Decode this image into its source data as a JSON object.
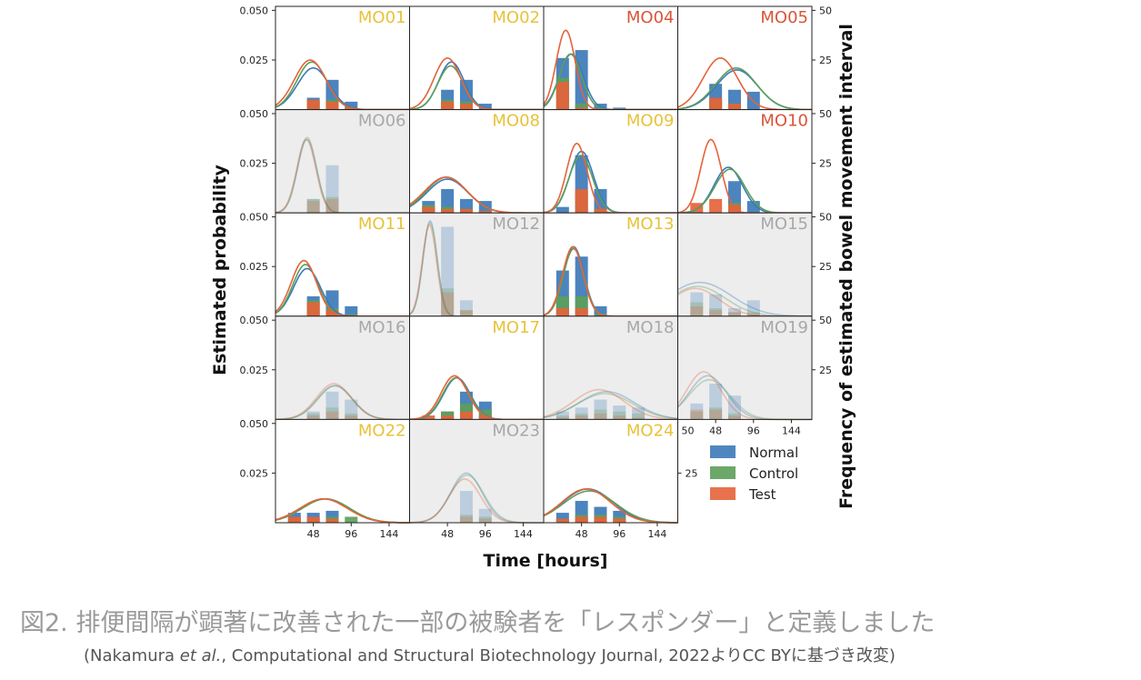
{
  "chart_data": {
    "type": "bar",
    "title": "",
    "xlabel": "Time [hours]",
    "ylabel": "Estimated probability",
    "y2label": "Frequency of estimated bowel movement interval",
    "xlim": [
      0,
      170
    ],
    "ylim": [
      0,
      0.052
    ],
    "y2lim": [
      0,
      52
    ],
    "xticks": [
      "48",
      "96",
      "144"
    ],
    "yticks": [
      "0.050",
      "0.025"
    ],
    "y2ticks": [
      "50",
      "25"
    ],
    "bar_centers": [
      24,
      48,
      72,
      96,
      120
    ],
    "extra_xtick": "50",
    "colors": {
      "Normal": "#3d79b8",
      "Control": "#5c9f5a",
      "Test": "#e5633a",
      "gold": "#e8c23a",
      "red": "#d9553a",
      "gray": "#a8a8a8"
    },
    "legend": {
      "position": "bottom-right",
      "entries": [
        "Normal",
        "Control",
        "Test"
      ]
    },
    "panels": [
      {
        "id": "MO01",
        "status": "gold",
        "normal": [
          0,
          6,
          15,
          4,
          0
        ],
        "control": [
          0,
          4,
          5,
          1,
          0
        ],
        "test": [
          0,
          5,
          4,
          1,
          0
        ],
        "curves": [
          {
            "s": "Normal",
            "mu": 48,
            "sd": 20,
            "a": 0.021
          },
          {
            "s": "Control",
            "mu": 46,
            "sd": 19,
            "a": 0.024
          },
          {
            "s": "Test",
            "mu": 44,
            "sd": 20,
            "a": 0.025
          }
        ]
      },
      {
        "id": "MO02",
        "status": "gold",
        "normal": [
          0,
          10,
          15,
          3,
          0
        ],
        "control": [
          0,
          5,
          4,
          0,
          0
        ],
        "test": [
          0,
          4,
          3,
          0,
          0
        ],
        "curves": [
          {
            "s": "Normal",
            "mu": 53,
            "sd": 16,
            "a": 0.024
          },
          {
            "s": "Control",
            "mu": 52,
            "sd": 16,
            "a": 0.022
          },
          {
            "s": "Test",
            "mu": 48,
            "sd": 17,
            "a": 0.026
          }
        ]
      },
      {
        "id": "MO04",
        "status": "red",
        "normal": [
          26,
          30,
          3,
          1,
          0
        ],
        "control": [
          16,
          3,
          0,
          0,
          0
        ],
        "test": [
          14,
          1,
          0,
          0,
          0
        ],
        "curves": [
          {
            "s": "Normal",
            "mu": 35,
            "sd": 15,
            "a": 0.028
          },
          {
            "s": "Control",
            "mu": 34,
            "sd": 14,
            "a": 0.028
          },
          {
            "s": "Test",
            "mu": 28,
            "sd": 12,
            "a": 0.04
          }
        ]
      },
      {
        "id": "MO05",
        "status": "red",
        "normal": [
          0,
          13,
          10,
          9,
          0
        ],
        "control": [
          0,
          5,
          3,
          0,
          0
        ],
        "test": [
          0,
          6,
          3,
          0,
          0
        ],
        "curves": [
          {
            "s": "Normal",
            "mu": 75,
            "sd": 26,
            "a": 0.02
          },
          {
            "s": "Control",
            "mu": 74,
            "sd": 26,
            "a": 0.021
          },
          {
            "s": "Test",
            "mu": 54,
            "sd": 22,
            "a": 0.026
          }
        ]
      },
      {
        "id": "MO06",
        "status": "gray",
        "normal": [
          0,
          7,
          24,
          0,
          0
        ],
        "control": [
          0,
          7,
          8,
          0,
          0
        ],
        "test": [
          0,
          6,
          7,
          0,
          0
        ],
        "curves": [
          {
            "s": "Normal",
            "mu": 40,
            "sd": 12,
            "a": 0.037
          },
          {
            "s": "Control",
            "mu": 40,
            "sd": 12,
            "a": 0.038
          },
          {
            "s": "Test",
            "mu": 39,
            "sd": 12,
            "a": 0.037
          }
        ]
      },
      {
        "id": "MO08",
        "status": "gold",
        "normal": [
          6,
          12,
          7,
          6,
          0
        ],
        "control": [
          4,
          3,
          2,
          1,
          0
        ],
        "test": [
          3,
          2,
          2,
          1,
          0
        ],
        "curves": [
          {
            "s": "Normal",
            "mu": 48,
            "sd": 26,
            "a": 0.017
          },
          {
            "s": "Control",
            "mu": 47,
            "sd": 26,
            "a": 0.018
          },
          {
            "s": "Test",
            "mu": 46,
            "sd": 27,
            "a": 0.018
          }
        ]
      },
      {
        "id": "MO09",
        "status": "gold",
        "normal": [
          3,
          29,
          12,
          0,
          0
        ],
        "control": [
          0,
          11,
          2,
          0,
          0
        ],
        "test": [
          0,
          12,
          2,
          0,
          0
        ],
        "curves": [
          {
            "s": "Normal",
            "mu": 48,
            "sd": 15,
            "a": 0.031
          },
          {
            "s": "Control",
            "mu": 47,
            "sd": 15,
            "a": 0.029
          },
          {
            "s": "Test",
            "mu": 42,
            "sd": 13,
            "a": 0.035
          }
        ]
      },
      {
        "id": "MO10",
        "status": "red",
        "normal": [
          0,
          0,
          16,
          6,
          0
        ],
        "control": [
          0,
          0,
          5,
          0,
          0
        ],
        "test": [
          5,
          7,
          4,
          0,
          0
        ],
        "curves": [
          {
            "s": "Normal",
            "mu": 64,
            "sd": 18,
            "a": 0.023
          },
          {
            "s": "Control",
            "mu": 66,
            "sd": 19,
            "a": 0.022
          },
          {
            "s": "Test",
            "mu": 42,
            "sd": 13,
            "a": 0.037
          }
        ]
      },
      {
        "id": "MO11",
        "status": "gold",
        "normal": [
          0,
          10,
          13,
          5,
          0
        ],
        "control": [
          0,
          8,
          4,
          1,
          0
        ],
        "test": [
          0,
          7,
          3,
          0,
          0
        ],
        "curves": [
          {
            "s": "Normal",
            "mu": 40,
            "sd": 17,
            "a": 0.024
          },
          {
            "s": "Control",
            "mu": 38,
            "sd": 16,
            "a": 0.026
          },
          {
            "s": "Test",
            "mu": 36,
            "sd": 16,
            "a": 0.028
          }
        ]
      },
      {
        "id": "MO12",
        "status": "gray",
        "normal": [
          0,
          45,
          8,
          0,
          0
        ],
        "control": [
          0,
          14,
          3,
          0,
          0
        ],
        "test": [
          0,
          12,
          3,
          0,
          0
        ],
        "curves": [
          {
            "s": "Normal",
            "mu": 26,
            "sd": 9,
            "a": 0.048
          },
          {
            "s": "Control",
            "mu": 26,
            "sd": 9,
            "a": 0.047
          },
          {
            "s": "Test",
            "mu": 25,
            "sd": 9,
            "a": 0.046
          }
        ]
      },
      {
        "id": "MO13",
        "status": "gold",
        "normal": [
          23,
          30,
          5,
          0,
          0
        ],
        "control": [
          10,
          10,
          1,
          0,
          0
        ],
        "test": [
          4,
          4,
          0,
          0,
          0
        ],
        "curves": [
          {
            "s": "Normal",
            "mu": 38,
            "sd": 13,
            "a": 0.035
          },
          {
            "s": "Control",
            "mu": 38,
            "sd": 13,
            "a": 0.034
          },
          {
            "s": "Test",
            "mu": 37,
            "sd": 13,
            "a": 0.035
          }
        ]
      },
      {
        "id": "MO15",
        "status": "gray",
        "normal": [
          12,
          11,
          4,
          8,
          0
        ],
        "control": [
          7,
          4,
          2,
          2,
          0
        ],
        "test": [
          5,
          3,
          2,
          1,
          0
        ],
        "curves": [
          {
            "s": "Normal",
            "mu": 28,
            "sd": 40,
            "a": 0.017
          },
          {
            "s": "Control",
            "mu": 25,
            "sd": 35,
            "a": 0.015
          },
          {
            "s": "Test",
            "mu": 22,
            "sd": 30,
            "a": 0.014
          }
        ]
      },
      {
        "id": "MO16",
        "status": "gray",
        "normal": [
          0,
          4,
          14,
          10,
          0
        ],
        "control": [
          0,
          3,
          6,
          3,
          0
        ],
        "test": [
          0,
          2,
          4,
          2,
          0
        ],
        "curves": [
          {
            "s": "Normal",
            "mu": 75,
            "sd": 22,
            "a": 0.017
          },
          {
            "s": "Control",
            "mu": 76,
            "sd": 22,
            "a": 0.017
          },
          {
            "s": "Test",
            "mu": 74,
            "sd": 22,
            "a": 0.018
          }
        ]
      },
      {
        "id": "MO17",
        "status": "gold",
        "normal": [
          0,
          4,
          14,
          9,
          0
        ],
        "control": [
          0,
          4,
          8,
          5,
          0
        ],
        "test": [
          2,
          2,
          4,
          2,
          0
        ],
        "curves": [
          {
            "s": "Normal",
            "mu": 60,
            "sd": 17,
            "a": 0.021
          },
          {
            "s": "Control",
            "mu": 59,
            "sd": 17,
            "a": 0.021
          },
          {
            "s": "Test",
            "mu": 57,
            "sd": 17,
            "a": 0.022
          }
        ]
      },
      {
        "id": "MO18",
        "status": "gray",
        "normal": [
          4,
          6,
          10,
          7,
          6
        ],
        "control": [
          2,
          3,
          5,
          4,
          3
        ],
        "test": [
          1,
          2,
          3,
          2,
          1
        ],
        "curves": [
          {
            "s": "Normal",
            "mu": 80,
            "sd": 35,
            "a": 0.014
          },
          {
            "s": "Control",
            "mu": 78,
            "sd": 35,
            "a": 0.013
          },
          {
            "s": "Test",
            "mu": 70,
            "sd": 32,
            "a": 0.015
          }
        ]
      },
      {
        "id": "MO19",
        "status": "gray",
        "normal": [
          8,
          18,
          12,
          0,
          0
        ],
        "control": [
          4,
          6,
          3,
          0,
          0
        ],
        "test": [
          5,
          5,
          2,
          0,
          0
        ],
        "curves": [
          {
            "s": "Normal",
            "mu": 38,
            "sd": 24,
            "a": 0.022
          },
          {
            "s": "Control",
            "mu": 40,
            "sd": 26,
            "a": 0.02
          },
          {
            "s": "Test",
            "mu": 33,
            "sd": 22,
            "a": 0.024
          }
        ]
      },
      {
        "id": "MO22",
        "status": "gold",
        "normal": [
          5,
          5,
          6,
          0,
          0
        ],
        "control": [
          2,
          2,
          3,
          3,
          0
        ],
        "test": [
          3,
          3,
          2,
          0,
          0
        ],
        "curves": [
          {
            "s": "Normal",
            "mu": 62,
            "sd": 30,
            "a": 0.012
          },
          {
            "s": "Control",
            "mu": 64,
            "sd": 30,
            "a": 0.012
          },
          {
            "s": "Test",
            "mu": 61,
            "sd": 30,
            "a": 0.012
          }
        ]
      },
      {
        "id": "MO23",
        "status": "gray",
        "normal": [
          0,
          0,
          16,
          7,
          0
        ],
        "control": [
          0,
          0,
          4,
          3,
          0
        ],
        "test": [
          0,
          0,
          3,
          2,
          0
        ],
        "curves": [
          {
            "s": "Normal",
            "mu": 72,
            "sd": 20,
            "a": 0.025
          },
          {
            "s": "Control",
            "mu": 73,
            "sd": 21,
            "a": 0.024
          },
          {
            "s": "Test",
            "mu": 70,
            "sd": 20,
            "a": 0.022
          }
        ]
      },
      {
        "id": "MO24",
        "status": "gold",
        "normal": [
          5,
          11,
          8,
          6,
          0
        ],
        "control": [
          2,
          4,
          4,
          3,
          0
        ],
        "test": [
          2,
          3,
          3,
          2,
          0
        ],
        "curves": [
          {
            "s": "Normal",
            "mu": 56,
            "sd": 32,
            "a": 0.017
          },
          {
            "s": "Control",
            "mu": 58,
            "sd": 33,
            "a": 0.016
          },
          {
            "s": "Test",
            "mu": 54,
            "sd": 31,
            "a": 0.017
          }
        ]
      }
    ]
  },
  "caption": {
    "main": "図2. 排便間隔が顕著に改善された一部の被験者を「レスポンダー」と定義しました",
    "sub_open": "(Nakamura ",
    "sub_italic": "et al.",
    "sub_rest": ", Computational and Structural Biotechnology Journal, 2022よりCC BYに基づき改変)"
  }
}
